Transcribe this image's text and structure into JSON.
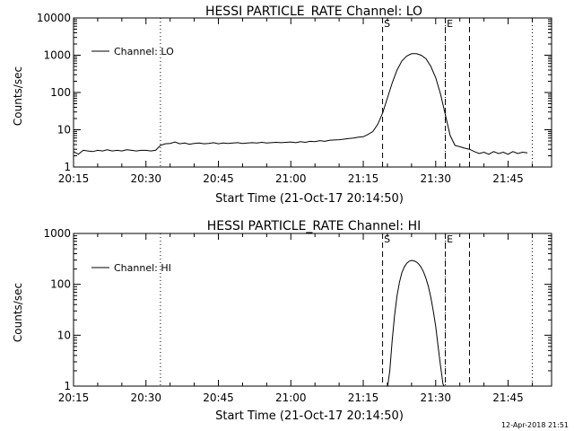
{
  "footer": {
    "timestamp": "12-Apr-2018 21:51"
  },
  "chart_data": [
    {
      "type": "line",
      "title": "HESSI PARTICLE_RATE Channel: LO",
      "xlabel": "Start Time (21-Oct-17 20:14:50)",
      "ylabel": "Counts/sec",
      "yscale": "log",
      "xlim": [
        "20:15",
        "21:54"
      ],
      "ylim": [
        1,
        10000
      ],
      "x_ticks": [
        "20:15",
        "20:30",
        "20:45",
        "21:00",
        "21:15",
        "21:30",
        "21:45"
      ],
      "y_ticks": [
        "1",
        "10",
        "100",
        "1000",
        "10000"
      ],
      "legend": {
        "label": "Channel: LO",
        "placement": "top-left"
      },
      "markers": [
        {
          "time": "20:33",
          "style": "dotted",
          "label": ""
        },
        {
          "time": "21:19",
          "style": "dashed",
          "label": "S"
        },
        {
          "time": "21:32",
          "style": "dotted",
          "label": ""
        },
        {
          "time": "21:32",
          "style": "dashed",
          "label": "E"
        },
        {
          "time": "21:37",
          "style": "dashed",
          "label": ""
        },
        {
          "time": "21:50",
          "style": "dotted",
          "label": ""
        }
      ],
      "series": [
        {
          "name": "Channel: LO",
          "color": "#000000",
          "points": [
            [
              "20:15",
              2.6
            ],
            [
              "20:16",
              2.2
            ],
            [
              "20:17",
              2.8
            ],
            [
              "20:18",
              2.7
            ],
            [
              "20:19",
              2.6
            ],
            [
              "20:20",
              2.8
            ],
            [
              "20:21",
              2.7
            ],
            [
              "20:22",
              2.9
            ],
            [
              "20:23",
              2.7
            ],
            [
              "20:24",
              2.8
            ],
            [
              "20:25",
              2.7
            ],
            [
              "20:26",
              2.9
            ],
            [
              "20:27",
              2.8
            ],
            [
              "20:28",
              2.7
            ],
            [
              "20:29",
              2.8
            ],
            [
              "20:30",
              2.8
            ],
            [
              "20:31",
              2.7
            ],
            [
              "20:32",
              2.8
            ],
            [
              "20:33",
              3.8
            ],
            [
              "20:34",
              4.2
            ],
            [
              "20:35",
              4.3
            ],
            [
              "20:36",
              4.7
            ],
            [
              "20:37",
              4.2
            ],
            [
              "20:38",
              4.4
            ],
            [
              "20:39",
              4.1
            ],
            [
              "20:40",
              4.3
            ],
            [
              "20:41",
              4.4
            ],
            [
              "20:42",
              4.2
            ],
            [
              "20:43",
              4.3
            ],
            [
              "20:44",
              4.5
            ],
            [
              "20:45",
              4.2
            ],
            [
              "20:46",
              4.4
            ],
            [
              "20:47",
              4.3
            ],
            [
              "20:48",
              4.4
            ],
            [
              "20:49",
              4.5
            ],
            [
              "20:50",
              4.3
            ],
            [
              "20:51",
              4.4
            ],
            [
              "20:52",
              4.5
            ],
            [
              "20:53",
              4.4
            ],
            [
              "20:54",
              4.6
            ],
            [
              "20:55",
              4.4
            ],
            [
              "20:56",
              4.5
            ],
            [
              "20:57",
              4.6
            ],
            [
              "20:58",
              4.5
            ],
            [
              "20:59",
              4.6
            ],
            [
              "21:00",
              4.7
            ],
            [
              "21:01",
              4.5
            ],
            [
              "21:02",
              4.8
            ],
            [
              "21:03",
              4.6
            ],
            [
              "21:04",
              4.9
            ],
            [
              "21:05",
              4.8
            ],
            [
              "21:06",
              5.1
            ],
            [
              "21:07",
              4.9
            ],
            [
              "21:08",
              5.2
            ],
            [
              "21:09",
              5.3
            ],
            [
              "21:10",
              5.4
            ],
            [
              "21:11",
              5.6
            ],
            [
              "21:12",
              5.8
            ],
            [
              "21:13",
              6.0
            ],
            [
              "21:14",
              6.3
            ],
            [
              "21:15",
              6.5
            ],
            [
              "21:16",
              7.5
            ],
            [
              "21:17",
              9
            ],
            [
              "21:18",
              14
            ],
            [
              "21:19",
              28
            ],
            [
              "21:20",
              70
            ],
            [
              "21:21",
              180
            ],
            [
              "21:22",
              400
            ],
            [
              "21:23",
              700
            ],
            [
              "21:24",
              950
            ],
            [
              "21:25",
              1100
            ],
            [
              "21:26",
              1100
            ],
            [
              "21:27",
              1000
            ],
            [
              "21:28",
              800
            ],
            [
              "21:29",
              500
            ],
            [
              "21:30",
              250
            ],
            [
              "21:31",
              90
            ],
            [
              "21:32",
              25
            ],
            [
              "21:33",
              7
            ],
            [
              "21:34",
              3.8
            ],
            [
              "21:35",
              3.5
            ],
            [
              "21:36",
              3.2
            ],
            [
              "21:37",
              3.0
            ],
            [
              "21:38",
              2.6
            ],
            [
              "21:39",
              2.3
            ],
            [
              "21:40",
              2.5
            ],
            [
              "21:41",
              2.2
            ],
            [
              "21:42",
              2.6
            ],
            [
              "21:43",
              2.3
            ],
            [
              "21:44",
              2.5
            ],
            [
              "21:45",
              2.2
            ],
            [
              "21:46",
              2.6
            ],
            [
              "21:47",
              2.3
            ],
            [
              "21:48",
              2.5
            ],
            [
              "21:49",
              2.4
            ]
          ]
        }
      ]
    },
    {
      "type": "line",
      "title": "HESSI PARTICLE_RATE Channel: HI",
      "xlabel": "Start Time (21-Oct-17 20:14:50)",
      "ylabel": "Counts/sec",
      "yscale": "log",
      "xlim": [
        "20:15",
        "21:54"
      ],
      "ylim": [
        1,
        1000
      ],
      "x_ticks": [
        "20:15",
        "20:30",
        "20:45",
        "21:00",
        "21:15",
        "21:30",
        "21:45"
      ],
      "y_ticks": [
        "1",
        "10",
        "100",
        "1000"
      ],
      "legend": {
        "label": "Channel: HI",
        "placement": "top-left"
      },
      "markers": [
        {
          "time": "20:33",
          "style": "dotted",
          "label": ""
        },
        {
          "time": "21:19",
          "style": "dashed",
          "label": "S"
        },
        {
          "time": "21:32",
          "style": "dotted",
          "label": ""
        },
        {
          "time": "21:32",
          "style": "dashed",
          "label": "E"
        },
        {
          "time": "21:37",
          "style": "dashed",
          "label": ""
        },
        {
          "time": "21:50",
          "style": "dotted",
          "label": ""
        }
      ],
      "series": [
        {
          "name": "Channel: HI",
          "color": "#000000",
          "points": [
            [
              "21:20",
              0.9
            ],
            [
              "21:20:30",
              2
            ],
            [
              "21:21",
              8
            ],
            [
              "21:21:30",
              25
            ],
            [
              "21:22",
              60
            ],
            [
              "21:22:30",
              110
            ],
            [
              "21:23",
              170
            ],
            [
              "21:23:30",
              220
            ],
            [
              "21:24",
              260
            ],
            [
              "21:24:30",
              285
            ],
            [
              "21:25",
              295
            ],
            [
              "21:25:30",
              290
            ],
            [
              "21:26",
              275
            ],
            [
              "21:26:30",
              250
            ],
            [
              "21:27",
              215
            ],
            [
              "21:27:30",
              175
            ],
            [
              "21:28",
              130
            ],
            [
              "21:28:30",
              90
            ],
            [
              "21:29",
              55
            ],
            [
              "21:29:30",
              30
            ],
            [
              "21:30",
              15
            ],
            [
              "21:30:30",
              6
            ],
            [
              "21:31",
              2.5
            ],
            [
              "21:31:30",
              1.1
            ],
            [
              "21:32",
              0.9
            ]
          ]
        }
      ]
    }
  ]
}
